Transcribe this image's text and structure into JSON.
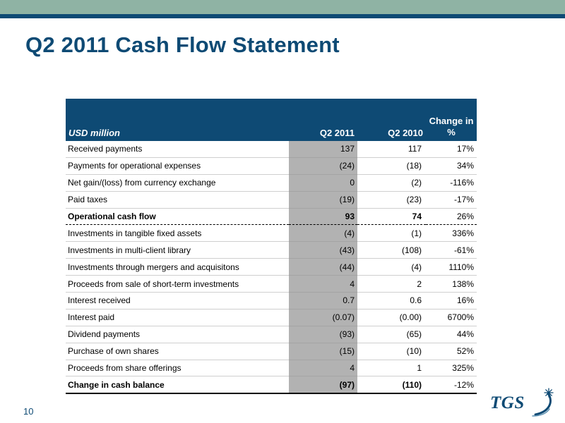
{
  "slide": {
    "title": "Q2 2011 Cash Flow Statement",
    "page_number": "10",
    "logo_text": "TGS",
    "colors": {
      "navy": "#0e4a74",
      "green_band": "#8fb3a4",
      "highlight_column": "#b2b2b2"
    }
  },
  "table": {
    "headers": {
      "unit": "USD million",
      "col_q2_2011": "Q2 2011",
      "col_q2_2010": "Q2 2010",
      "col_change_line1": "Change in",
      "col_change_line2": "%"
    },
    "rows": [
      {
        "label": "Received payments",
        "q2_2011": "137",
        "q2_2010": "117",
        "change": "17%"
      },
      {
        "label": "Payments for operational expenses",
        "q2_2011": "(24)",
        "q2_2010": "(18)",
        "change": "34%"
      },
      {
        "label": "Net gain/(loss) from currency exchange",
        "q2_2011": "0",
        "q2_2010": "(2)",
        "change": "-116%"
      },
      {
        "label": "Paid taxes",
        "q2_2011": "(19)",
        "q2_2010": "(23)",
        "change": "-17%"
      },
      {
        "label": "Operational cash flow",
        "q2_2011": "93",
        "q2_2010": "74",
        "change": "26%",
        "style": "total"
      },
      {
        "label": "Investments in tangible fixed assets",
        "q2_2011": "(4)",
        "q2_2010": "(1)",
        "change": "336%"
      },
      {
        "label": "Investments in multi-client library",
        "q2_2011": "(43)",
        "q2_2010": "(108)",
        "change": "-61%"
      },
      {
        "label": "Investments through mergers and acquisitons",
        "q2_2011": "(44)",
        "q2_2010": "(4)",
        "change": "1110%"
      },
      {
        "label": "Proceeds from sale of short-term investments",
        "q2_2011": "4",
        "q2_2010": "2",
        "change": "138%"
      },
      {
        "label": "Interest received",
        "q2_2011": "0.7",
        "q2_2010": "0.6",
        "change": "16%"
      },
      {
        "label": "Interest paid",
        "q2_2011": "(0.07)",
        "q2_2010": "(0.00)",
        "change": "6700%"
      },
      {
        "label": "Dividend payments",
        "q2_2011": "(93)",
        "q2_2010": "(65)",
        "change": "44%"
      },
      {
        "label": "Purchase of own shares",
        "q2_2011": "(15)",
        "q2_2010": "(10)",
        "change": "52%"
      },
      {
        "label": "Proceeds from share offerings",
        "q2_2011": "4",
        "q2_2010": "1",
        "change": "325%"
      },
      {
        "label": "Change in cash balance",
        "q2_2011": "(97)",
        "q2_2010": "(110)",
        "change": "-12%",
        "style": "final"
      }
    ]
  }
}
